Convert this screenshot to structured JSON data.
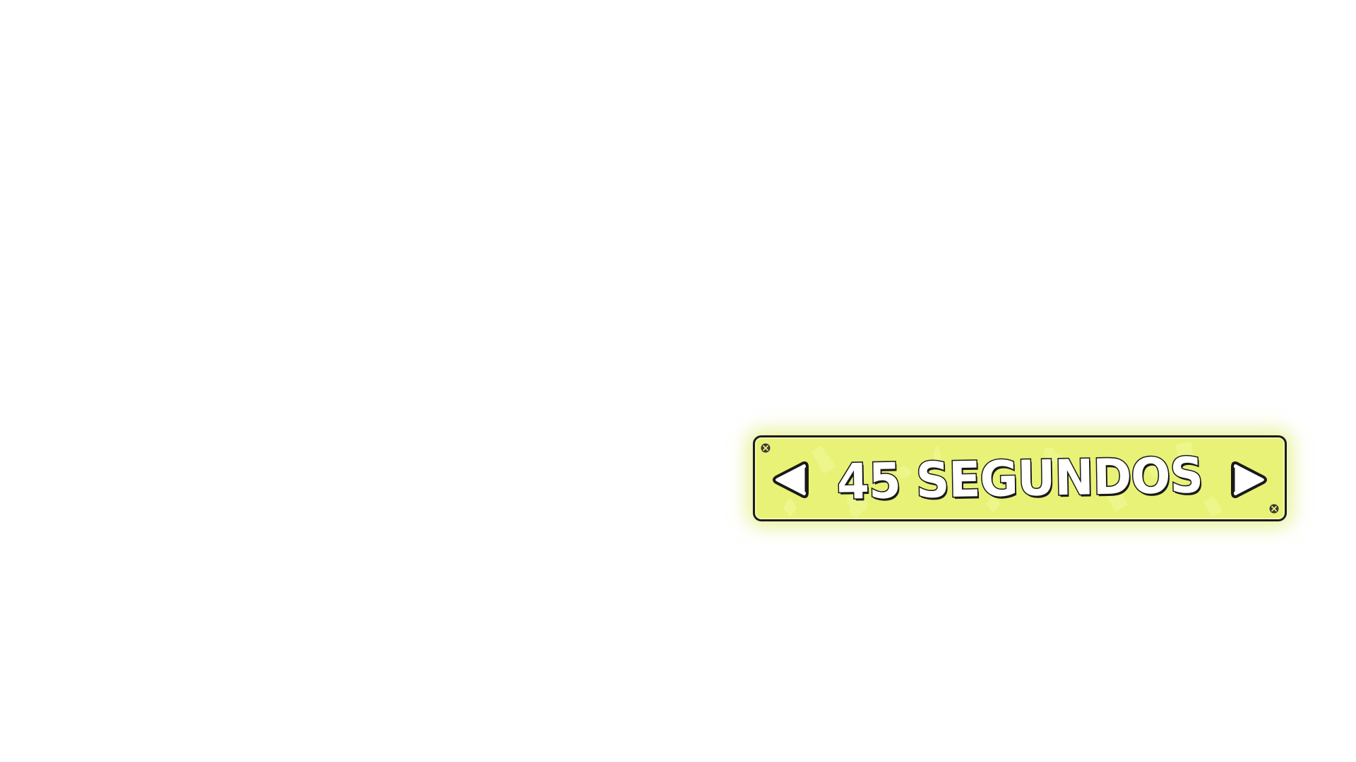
{
  "option_selector": {
    "value_label": "45 SEGUNDOS",
    "prev_icon": "triangle-left-icon",
    "next_icon": "triangle-right-icon",
    "screw_icon": "screw-icon",
    "background_pattern_icon": "card-suit-icon"
  },
  "colors": {
    "panel_fill": "#e8f276",
    "panel_glow": "#d6e846",
    "outline": "#1c1c1c",
    "text_fill": "#ffffff"
  }
}
